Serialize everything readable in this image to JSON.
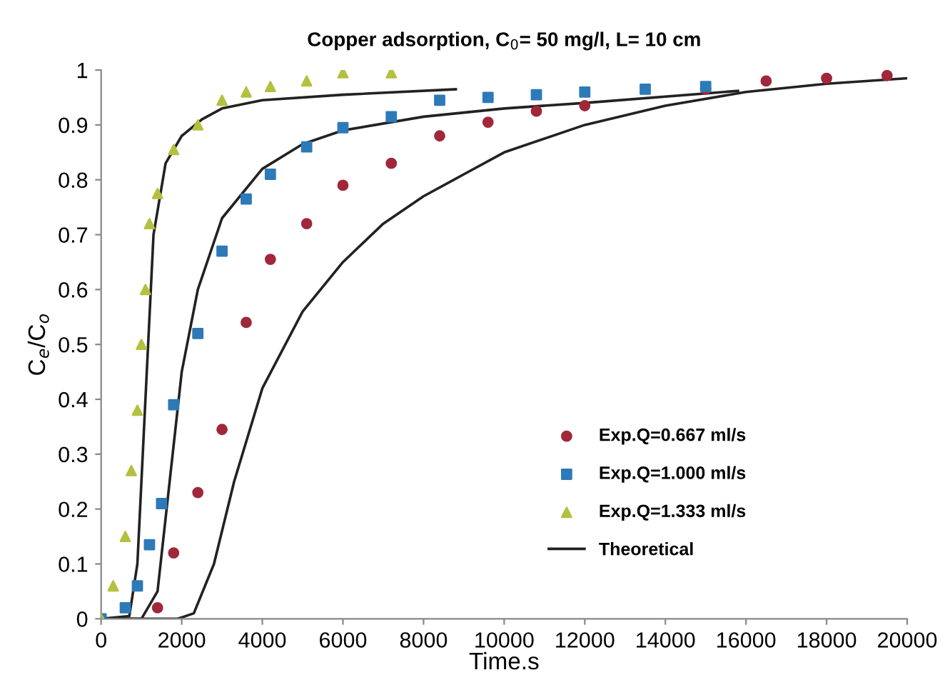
{
  "chart_data": {
    "type": "scatter",
    "title": "Copper adsorption, C$_{0}$= 50 mg/l, L= 10 cm",
    "xlabel": "Time.s",
    "ylabel": "C$_{e}$/C$_{o}$",
    "xlim": [
      0,
      20000
    ],
    "xticks": [
      0,
      2000,
      4000,
      6000,
      8000,
      10000,
      12000,
      14000,
      16000,
      18000,
      20000
    ],
    "ylim": [
      0,
      1
    ],
    "yticks": [
      0,
      0.1,
      0.2,
      0.3,
      0.4,
      0.5,
      0.6,
      0.7,
      0.8,
      0.9,
      1
    ],
    "grid": false,
    "legend": "bottom right",
    "series": [
      {
        "name": "Exp.Q=0.667 ml/s",
        "marker": "circle",
        "color": "#a0283a",
        "x": [
          1400,
          1800,
          2400,
          3000,
          3600,
          4200,
          5100,
          6000,
          7200,
          8400,
          9600,
          10800,
          12000,
          15000,
          16500,
          18000,
          19500
        ],
        "values": [
          0.02,
          0.12,
          0.23,
          0.345,
          0.54,
          0.655,
          0.72,
          0.79,
          0.83,
          0.88,
          0.905,
          0.925,
          0.935,
          0.965,
          0.98,
          0.985,
          0.99
        ]
      },
      {
        "name": "Exp.Q=1.000 ml/s",
        "marker": "square",
        "color": "#2e7ab8",
        "x": [
          0,
          600,
          900,
          1200,
          1500,
          1800,
          2400,
          3000,
          3600,
          4200,
          5100,
          6000,
          7200,
          8400,
          9600,
          10800,
          12000,
          13500,
          15000
        ],
        "values": [
          0,
          0.02,
          0.06,
          0.135,
          0.21,
          0.39,
          0.52,
          0.67,
          0.765,
          0.81,
          0.86,
          0.895,
          0.915,
          0.945,
          0.95,
          0.955,
          0.96,
          0.965,
          0.97
        ]
      },
      {
        "name": "Exp.Q=1.333 ml/s",
        "marker": "triangle",
        "color": "#b5c040",
        "x": [
          0,
          300,
          600,
          750,
          900,
          1000,
          1100,
          1200,
          1400,
          1800,
          2400,
          3000,
          3600,
          4200,
          5100,
          6000,
          7200
        ],
        "values": [
          0,
          0.06,
          0.15,
          0.27,
          0.38,
          0.5,
          0.6,
          0.72,
          0.775,
          0.855,
          0.9,
          0.945,
          0.96,
          0.97,
          0.98,
          0.995,
          0.995
        ]
      },
      {
        "name": "Theoretical",
        "type": "line",
        "marker": "none",
        "line_style": "solid",
        "color": "#222222",
        "x": [
          0,
          700,
          900,
          1100,
          1300,
          1600,
          2000,
          2500,
          3000,
          4000,
          6000,
          8800
        ],
        "values": [
          0,
          0.005,
          0.1,
          0.4,
          0.7,
          0.83,
          0.88,
          0.91,
          0.93,
          0.945,
          0.955,
          0.965
        ]
      },
      {
        "type": "line",
        "marker": "none",
        "line_style": "solid",
        "color": "#222222",
        "x": [
          0,
          1000,
          1400,
          1700,
          2000,
          2400,
          3000,
          4000,
          5000,
          6000,
          8000,
          10000,
          12000,
          15800
        ],
        "values": [
          0,
          0,
          0.05,
          0.25,
          0.45,
          0.6,
          0.73,
          0.82,
          0.865,
          0.89,
          0.915,
          0.93,
          0.94,
          0.962
        ]
      },
      {
        "type": "line",
        "marker": "none",
        "line_style": "solid",
        "color": "#222222",
        "x": [
          0,
          1900,
          2300,
          2800,
          3300,
          4000,
          5000,
          6000,
          7000,
          8000,
          9000,
          10000,
          12000,
          14000,
          16000,
          18000,
          20000
        ],
        "values": [
          0,
          0,
          0.01,
          0.1,
          0.25,
          0.42,
          0.56,
          0.65,
          0.72,
          0.77,
          0.81,
          0.85,
          0.9,
          0.935,
          0.96,
          0.975,
          0.985
        ]
      }
    ]
  }
}
